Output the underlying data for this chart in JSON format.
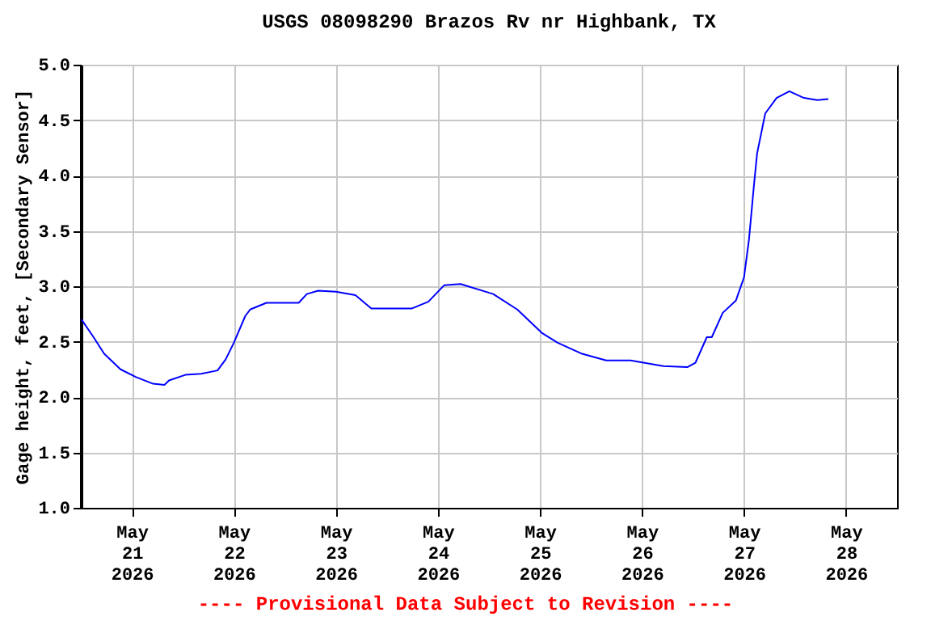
{
  "chart_data": {
    "type": "line",
    "title": "USGS 08098290 Brazos Rv nr Highbank, TX",
    "ylabel": "Gage height, feet, [Secondary Sensor]",
    "x": [
      "2026-05-20T12:10",
      "2026-05-20T15:00",
      "2026-05-20T17:30",
      "2026-05-20T21:20",
      "2026-05-21T01:00",
      "2026-05-21T05:00",
      "2026-05-21T07:40",
      "2026-05-21T08:45",
      "2026-05-21T12:35",
      "2026-05-21T16:20",
      "2026-05-21T20:10",
      "2026-05-21T22:05",
      "2026-05-22T00:00",
      "2026-05-22T02:40",
      "2026-05-22T03:50",
      "2026-05-22T07:40",
      "2026-05-22T15:15",
      "2026-05-22T17:10",
      "2026-05-22T19:50",
      "2026-05-23T00:00",
      "2026-05-23T04:35",
      "2026-05-23T08:20",
      "2026-05-23T12:10",
      "2026-05-23T17:55",
      "2026-05-23T21:45",
      "2026-05-24T01:30",
      "2026-05-24T05:20",
      "2026-05-24T13:00",
      "2026-05-24T18:40",
      "2026-05-25T00:25",
      "2026-05-25T04:10",
      "2026-05-25T09:55",
      "2026-05-25T15:35",
      "2026-05-25T21:20",
      "2026-05-26T05:00",
      "2026-05-26T10:40",
      "2026-05-26T12:35",
      "2026-05-26T15:15",
      "2026-05-26T16:25",
      "2026-05-26T19:00",
      "2026-05-26T22:05",
      "2026-05-27T00:00",
      "2026-05-27T01:10",
      "2026-05-27T02:20",
      "2026-05-27T03:05",
      "2026-05-27T05:00",
      "2026-05-27T07:40",
      "2026-05-27T10:40",
      "2026-05-27T14:05",
      "2026-05-27T17:10",
      "2026-05-27T19:50"
    ],
    "series": [
      {
        "color": "#0000ff",
        "values": [
          2.7,
          2.54,
          2.39,
          2.25,
          2.18,
          2.12,
          2.11,
          2.15,
          2.2,
          2.21,
          2.24,
          2.34,
          2.49,
          2.73,
          2.79,
          2.85,
          2.85,
          2.93,
          2.96,
          2.95,
          2.92,
          2.8,
          2.8,
          2.8,
          2.86,
          3.01,
          3.02,
          2.93,
          2.79,
          2.58,
          2.49,
          2.39,
          2.33,
          2.33,
          2.28,
          2.27,
          2.31,
          2.54,
          2.54,
          2.76,
          2.87,
          3.08,
          3.42,
          3.91,
          4.2,
          4.56,
          4.7,
          4.76,
          4.7,
          4.68,
          4.69
        ]
      }
    ],
    "xlim": [
      "2026-05-20T12:00",
      "2026-05-28T12:00"
    ],
    "xticks": [
      {
        "value": "2026-05-21T00:00",
        "label": "May\n21\n2026"
      },
      {
        "value": "2026-05-22T00:00",
        "label": "May\n22\n2026"
      },
      {
        "value": "2026-05-23T00:00",
        "label": "May\n23\n2026"
      },
      {
        "value": "2026-05-24T00:00",
        "label": "May\n24\n2026"
      },
      {
        "value": "2026-05-25T00:00",
        "label": "May\n25\n2026"
      },
      {
        "value": "2026-05-26T00:00",
        "label": "May\n26\n2026"
      },
      {
        "value": "2026-05-27T00:00",
        "label": "May\n27\n2026"
      },
      {
        "value": "2026-05-28T00:00",
        "label": "May\n28\n2026"
      }
    ],
    "ylim": [
      1.0,
      5.0
    ],
    "yticks": [
      {
        "value": 1,
        "label": "1.0"
      },
      {
        "value": 1.5,
        "label": "1.5"
      },
      {
        "value": 2,
        "label": "2.0"
      },
      {
        "value": 2.5,
        "label": "2.5"
      },
      {
        "value": 3,
        "label": "3.0"
      },
      {
        "value": 3.5,
        "label": "3.5"
      },
      {
        "value": 4,
        "label": "4.0"
      },
      {
        "value": 4.5,
        "label": "4.5"
      },
      {
        "value": 5,
        "label": "5.0"
      }
    ],
    "grid": true,
    "annotations": [
      "---- Provisional Data Subject to Revision ----"
    ]
  }
}
